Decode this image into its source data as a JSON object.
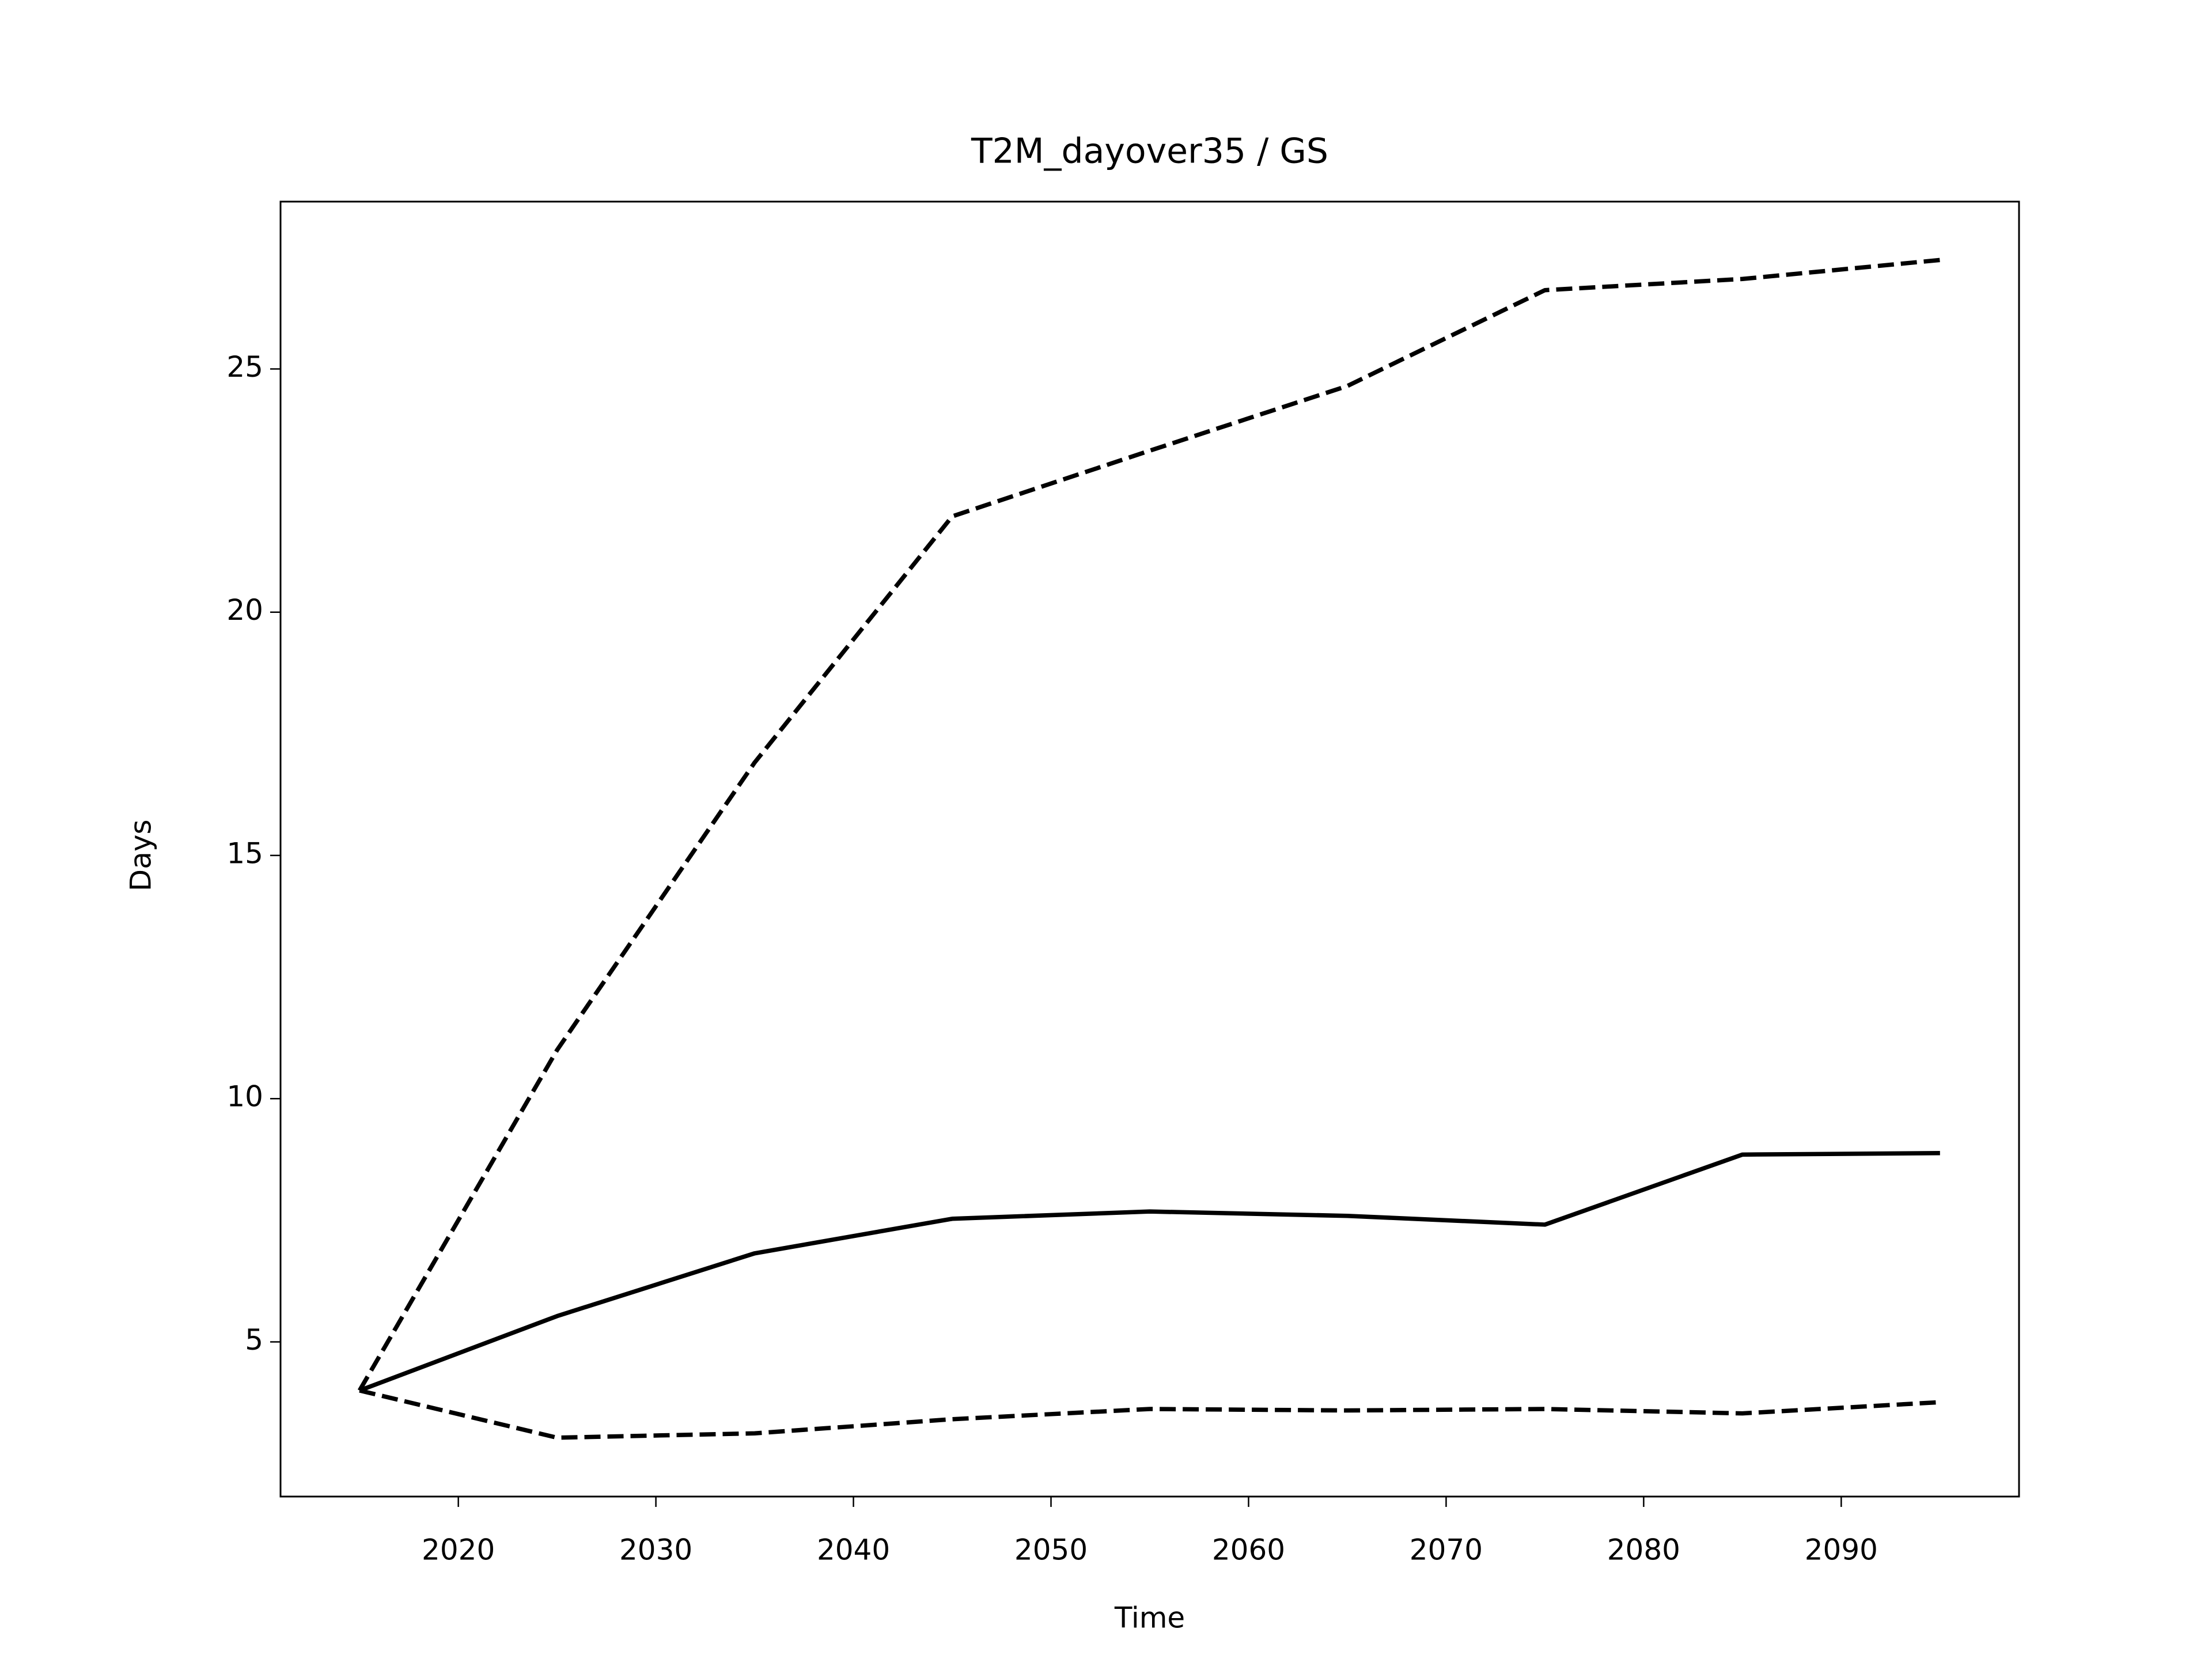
{
  "chart_data": {
    "type": "line",
    "title": "T2M_dayover35 / GS",
    "x_label": "Time",
    "y_label": "Days",
    "x": [
      2015,
      2025,
      2035,
      2045,
      2055,
      2065,
      2075,
      2085,
      2095
    ],
    "series": [
      {
        "color": "#000000",
        "style": "solid",
        "values": [
          4.0,
          5.53,
          6.82,
          7.53,
          7.68,
          7.59,
          7.41,
          8.85,
          8.88
        ]
      },
      {
        "color": "#000000",
        "style": "dashed",
        "values": [
          4.0,
          11.0,
          16.91,
          21.97,
          23.32,
          24.65,
          26.62,
          26.85,
          27.24
        ]
      },
      {
        "color": "#000000",
        "style": "dashed",
        "values": [
          4.0,
          3.03,
          3.12,
          3.41,
          3.62,
          3.59,
          3.62,
          3.53,
          3.76
        ]
      }
    ],
    "xlim": [
      2011,
      2099
    ],
    "xticks": [
      2020,
      2030,
      2040,
      2050,
      2060,
      2070,
      2080,
      2090
    ],
    "ylim": [
      1.82,
      28.44
    ],
    "yticks": [
      5,
      10,
      15,
      20,
      25
    ],
    "grid": false
  }
}
